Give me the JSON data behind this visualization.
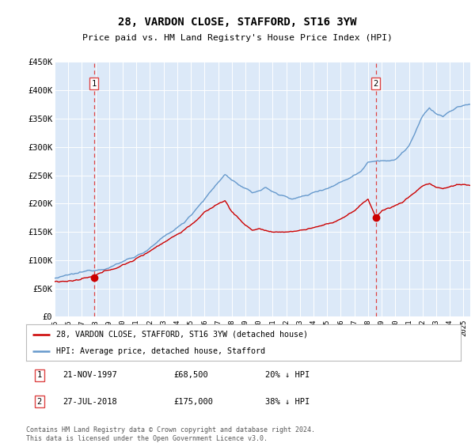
{
  "title": "28, VARDON CLOSE, STAFFORD, ST16 3YW",
  "subtitle": "Price paid vs. HM Land Registry's House Price Index (HPI)",
  "legend_line1": "28, VARDON CLOSE, STAFFORD, ST16 3YW (detached house)",
  "legend_line2": "HPI: Average price, detached house, Stafford",
  "transaction1_date": "21-NOV-1997",
  "transaction1_price": 68500,
  "transaction1_date_num": 1997.89,
  "transaction1_pct": "20% ↓ HPI",
  "transaction2_date": "27-JUL-2018",
  "transaction2_price": 175000,
  "transaction2_date_num": 2018.57,
  "transaction2_pct": "38% ↓ HPI",
  "footer": "Contains HM Land Registry data © Crown copyright and database right 2024.\nThis data is licensed under the Open Government Licence v3.0.",
  "ylim": [
    0,
    450000
  ],
  "xlim_start": 1995.0,
  "xlim_end": 2025.5,
  "plot_bg": "#dce9f8",
  "red_color": "#cc0000",
  "blue_color": "#6699cc",
  "dashed_color": "#dd4444"
}
